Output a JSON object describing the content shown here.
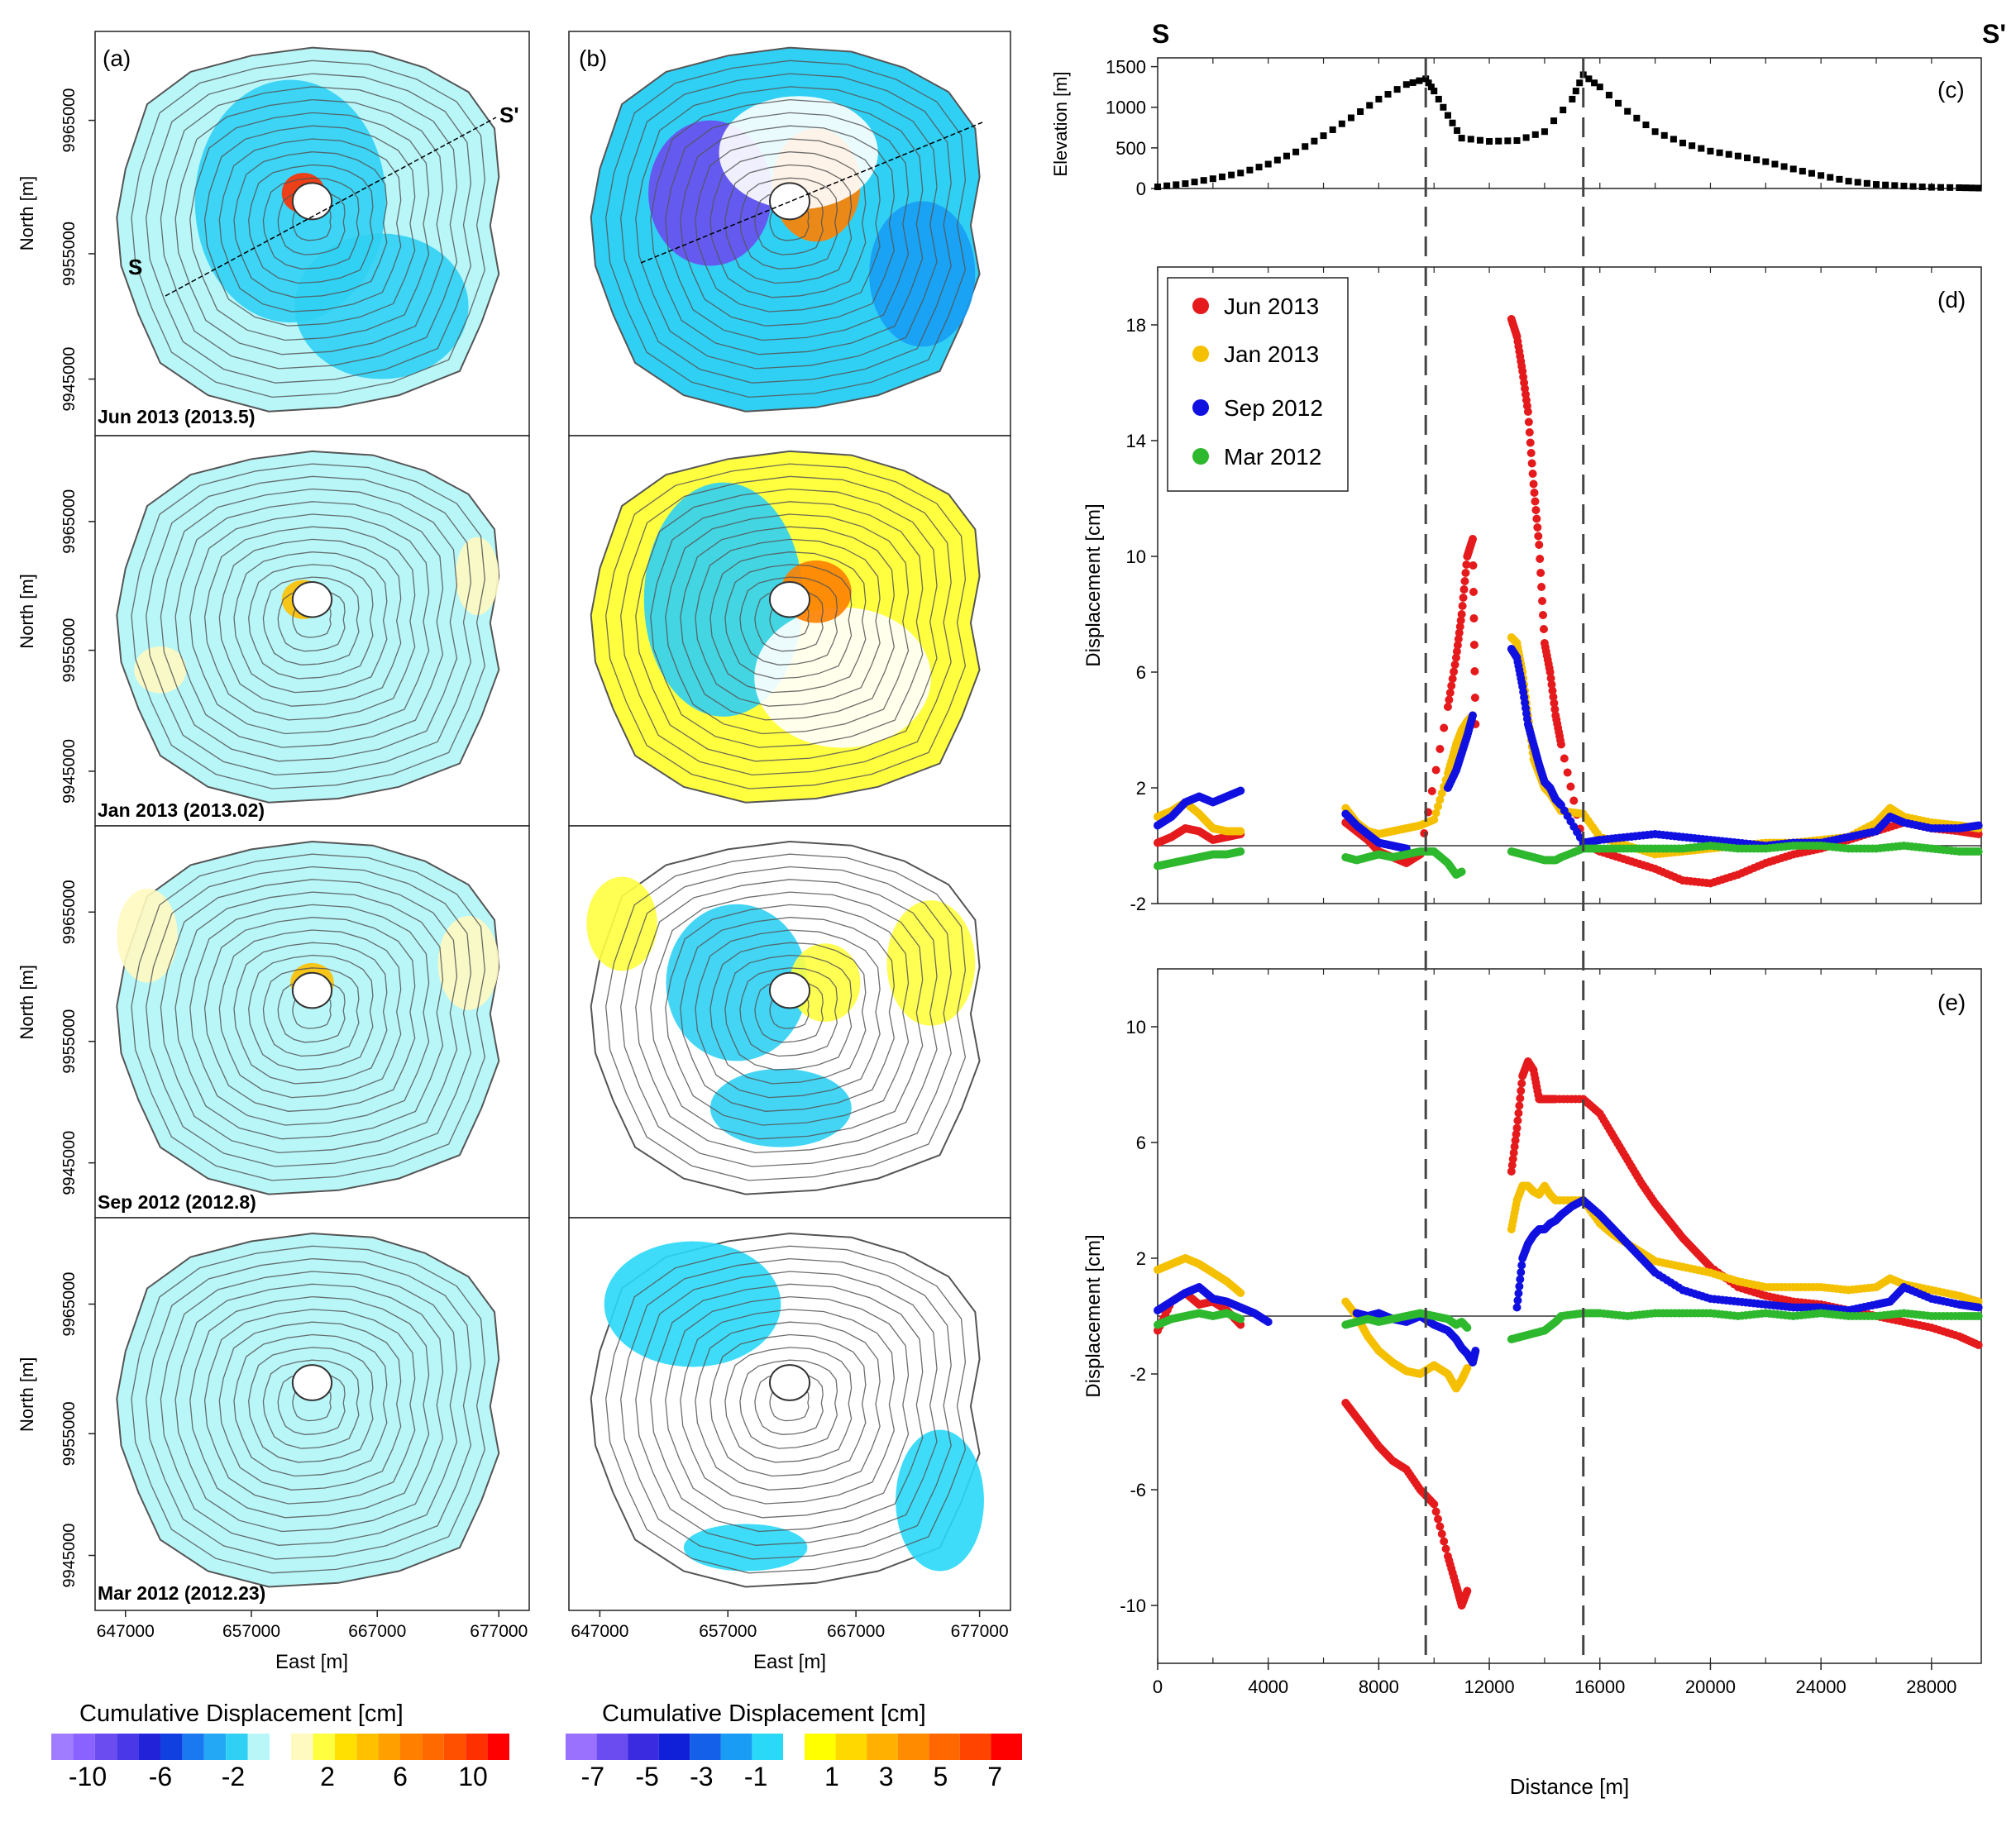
{
  "maps": {
    "panel_labels": [
      "(a)",
      "(b)"
    ],
    "row_dates": [
      "Jun 2013 (2013.5)",
      "Jan 2013 (2013.02)",
      "Sep 2012 (2012.8)",
      "Mar 2012 (2012.23)"
    ],
    "profile_start": "S",
    "profile_end": "S'",
    "north_label": "North [m]",
    "east_label": "East [m]",
    "north_ticks": [
      "9965000",
      "9955000",
      "9945000"
    ],
    "east_ticks": [
      "647000",
      "657000",
      "667000",
      "677000"
    ]
  },
  "colorbars": [
    {
      "title": "Cumulative Displacement [cm]",
      "tick_labels": [
        "-10",
        "-6",
        "-2",
        "2",
        "6",
        "10"
      ],
      "negative_colors": [
        "#a07cff",
        "#8a62ff",
        "#6a4cf0",
        "#4a38e8",
        "#2222d8",
        "#1040e0",
        "#1a78f0",
        "#22a8f4",
        "#30d0f4",
        "#b8f6f8"
      ],
      "positive_colors": [
        "#fffac0",
        "#ffff40",
        "#ffe000",
        "#ffc000",
        "#ffa000",
        "#ff8000",
        "#ff6a00",
        "#ff5000",
        "#ff3000",
        "#ff0000"
      ]
    },
    {
      "title": "Cumulative Displacement [cm]",
      "tick_labels": [
        "-7",
        "-5",
        "-3",
        "-1",
        "1",
        "3",
        "5",
        "7"
      ],
      "negative_colors": [
        "#9a70ff",
        "#6a4cf0",
        "#3a2ae0",
        "#1020d8",
        "#1460e8",
        "#189cf4",
        "#2ad8f8"
      ],
      "positive_colors": [
        "#ffff00",
        "#ffd800",
        "#ffb000",
        "#ff8c00",
        "#ff6800",
        "#ff4400",
        "#ff0000"
      ]
    }
  ],
  "legend": {
    "entries": [
      "Jun 2013",
      "Jan 2013",
      "Sep 2012",
      "Mar 2012"
    ],
    "colors": [
      "#e41a1c",
      "#f5c000",
      "#1010e0",
      "#2eb82e"
    ]
  },
  "chart_data": [
    {
      "panel": "(c)",
      "type": "scatter",
      "ylabel": "Elevation [m]",
      "yticks": [
        0,
        500,
        1000,
        1500
      ],
      "ylim": [
        0,
        1600
      ],
      "xlim": [
        0,
        29800
      ],
      "series": [
        {
          "color": "#000000",
          "x": [
            0,
            1000,
            2000,
            3000,
            4000,
            5000,
            6000,
            7000,
            8000,
            9000,
            9700,
            10000,
            10500,
            11000,
            12000,
            13000,
            14000,
            15000,
            15400,
            16000,
            17000,
            18000,
            19000,
            20000,
            21000,
            22000,
            23000,
            24000,
            25000,
            26000,
            27000,
            28000,
            29000,
            29700
          ],
          "y": [
            20,
            60,
            120,
            190,
            300,
            450,
            650,
            870,
            1100,
            1280,
            1350,
            1200,
            900,
            620,
            580,
            590,
            700,
            1100,
            1400,
            1250,
            950,
            700,
            560,
            460,
            400,
            330,
            240,
            160,
            90,
            50,
            30,
            15,
            10,
            5
          ]
        }
      ]
    },
    {
      "panel": "(d)",
      "type": "scatter",
      "ylabel": "Displacement [cm]",
      "yticks": [
        -2,
        2,
        6,
        10,
        14,
        18
      ],
      "ylim": [
        -2,
        20
      ],
      "xlim": [
        0,
        29800
      ],
      "series": [
        {
          "name": "Jun 2013",
          "color": "#e41a1c",
          "x": [
            0,
            500,
            1000,
            1500,
            2000,
            2500,
            3000,
            6800,
            7200,
            7600,
            8000,
            8500,
            9000,
            9500,
            10500,
            10800,
            11000,
            11200,
            11400,
            11500,
            12800,
            13000,
            13200,
            13400,
            13600,
            13800,
            14000,
            14200,
            14400,
            14600,
            15400,
            16000,
            17000,
            18000,
            19000,
            20000,
            21000,
            22000,
            23000,
            24000,
            25000,
            26000,
            27000,
            28000,
            29000,
            29700
          ],
          "y": [
            0.1,
            0.3,
            0.6,
            0.5,
            0.2,
            0.3,
            0.4,
            0.8,
            0.5,
            0.2,
            -0.2,
            -0.4,
            -0.6,
            -0.3,
            4.8,
            6.5,
            8.0,
            10.0,
            10.6,
            4.2,
            18.2,
            17.6,
            16.4,
            15.0,
            12.5,
            10.4,
            7.0,
            6.0,
            4.5,
            3.5,
            0.1,
            -0.2,
            -0.5,
            -0.8,
            -1.2,
            -1.3,
            -1.0,
            -0.6,
            -0.3,
            -0.1,
            0.2,
            0.5,
            0.8,
            0.6,
            0.5,
            0.4
          ]
        },
        {
          "name": "Jan 2013",
          "color": "#f5c000",
          "x": [
            0,
            500,
            1000,
            1500,
            2000,
            2500,
            3000,
            6800,
            7200,
            7600,
            8000,
            8500,
            9000,
            9500,
            10000,
            10500,
            10800,
            11000,
            11200,
            11400,
            12800,
            13000,
            13200,
            13400,
            13600,
            13800,
            14000,
            14200,
            14400,
            14600,
            15400,
            16000,
            17000,
            18000,
            19000,
            20000,
            21000,
            22000,
            23000,
            24000,
            25000,
            26000,
            26500,
            27000,
            28000,
            29000,
            29700
          ],
          "y": [
            1.0,
            1.2,
            1.5,
            1.1,
            0.6,
            0.5,
            0.5,
            1.3,
            0.8,
            0.5,
            0.4,
            0.5,
            0.6,
            0.7,
            0.9,
            2.5,
            3.5,
            4.0,
            4.3,
            4.5,
            7.2,
            7.0,
            6.0,
            4.5,
            3.0,
            2.5,
            2.0,
            1.8,
            1.5,
            1.2,
            1.1,
            0.3,
            0.0,
            -0.3,
            -0.2,
            -0.1,
            0.0,
            0.1,
            0.1,
            0.2,
            0.3,
            0.8,
            1.3,
            1.0,
            0.8,
            0.7,
            0.6
          ]
        },
        {
          "name": "Sep 2012",
          "color": "#1010e0",
          "x": [
            0,
            500,
            1000,
            1500,
            2000,
            2500,
            3000,
            6800,
            7200,
            7600,
            8000,
            8500,
            9000,
            10500,
            10800,
            11000,
            11200,
            11400,
            12800,
            13000,
            13200,
            13400,
            13600,
            13800,
            14000,
            14200,
            14400,
            14600,
            15400,
            16000,
            17000,
            18000,
            19000,
            20000,
            21000,
            22000,
            23000,
            24000,
            25000,
            26000,
            26500,
            27000,
            28000,
            29000,
            29700
          ],
          "y": [
            0.7,
            1.0,
            1.5,
            1.7,
            1.5,
            1.7,
            1.9,
            1.1,
            0.7,
            0.4,
            0.1,
            0.0,
            -0.1,
            2.0,
            2.6,
            3.2,
            3.8,
            4.5,
            6.8,
            6.5,
            5.5,
            4.2,
            3.5,
            2.8,
            2.2,
            2.0,
            1.6,
            1.4,
            0.1,
            0.2,
            0.3,
            0.4,
            0.3,
            0.2,
            0.1,
            0.0,
            0.1,
            0.1,
            0.3,
            0.5,
            1.0,
            0.8,
            0.6,
            0.6,
            0.7
          ]
        },
        {
          "name": "Mar 2012",
          "color": "#2eb82e",
          "x": [
            0,
            500,
            1000,
            1500,
            2000,
            2500,
            3000,
            6800,
            7200,
            7600,
            8000,
            8500,
            9000,
            9500,
            10000,
            10500,
            10800,
            11000,
            12800,
            13200,
            13600,
            14000,
            14400,
            14600,
            15400,
            16000,
            17000,
            18000,
            19000,
            20000,
            21000,
            22000,
            23000,
            24000,
            25000,
            26000,
            27000,
            28000,
            29000,
            29700
          ],
          "y": [
            -0.7,
            -0.6,
            -0.5,
            -0.4,
            -0.3,
            -0.3,
            -0.2,
            -0.4,
            -0.5,
            -0.4,
            -0.3,
            -0.4,
            -0.3,
            -0.2,
            -0.2,
            -0.6,
            -1.0,
            -0.9,
            -0.2,
            -0.3,
            -0.4,
            -0.5,
            -0.5,
            -0.4,
            -0.1,
            -0.1,
            -0.1,
            -0.1,
            -0.1,
            0.0,
            -0.1,
            -0.1,
            0.0,
            0.0,
            -0.1,
            -0.1,
            0.0,
            -0.1,
            -0.2,
            -0.2
          ]
        }
      ]
    },
    {
      "panel": "(e)",
      "type": "scatter",
      "xlabel": "Distance [m]",
      "ylabel": "Displacement [cm]",
      "yticks": [
        -10,
        -6,
        -2,
        2,
        6,
        10
      ],
      "xticks": [
        0,
        4000,
        8000,
        12000,
        16000,
        20000,
        24000,
        28000
      ],
      "ylim": [
        -12,
        12
      ],
      "xlim": [
        0,
        29800
      ],
      "series": [
        {
          "name": "Jun 2013",
          "color": "#e41a1c",
          "x": [
            0,
            500,
            1000,
            1500,
            2000,
            2500,
            3000,
            6800,
            7200,
            7600,
            8000,
            8500,
            9000,
            9500,
            10000,
            10500,
            10800,
            11000,
            11200,
            12800,
            13000,
            13200,
            13400,
            13600,
            13800,
            14000,
            14200,
            14400,
            15400,
            16000,
            16500,
            17000,
            17500,
            18000,
            18500,
            19000,
            19500,
            20000,
            21000,
            22000,
            23000,
            24000,
            25000,
            26000,
            27000,
            28000,
            29000,
            29700
          ],
          "y": [
            -0.5,
            0.5,
            0.8,
            0.4,
            0.5,
            0.2,
            -0.3,
            -3.0,
            -3.5,
            -4.0,
            -4.5,
            -5.0,
            -5.3,
            -6.0,
            -6.5,
            -8.3,
            -9.3,
            -10.0,
            -9.5,
            5.0,
            6.5,
            8.3,
            8.8,
            8.5,
            7.5,
            7.5,
            7.5,
            7.5,
            7.5,
            7.0,
            6.2,
            5.4,
            4.6,
            3.9,
            3.3,
            2.7,
            2.2,
            1.7,
            1.0,
            0.7,
            0.5,
            0.4,
            0.2,
            0.0,
            -0.2,
            -0.4,
            -0.7,
            -1.0
          ]
        },
        {
          "name": "Jan 2013",
          "color": "#f5c000",
          "x": [
            0,
            500,
            1000,
            1500,
            2000,
            2500,
            3000,
            6800,
            7200,
            7600,
            8000,
            8500,
            9000,
            9500,
            10000,
            10500,
            10800,
            11000,
            11200,
            12800,
            13000,
            13200,
            13400,
            13600,
            13800,
            14000,
            14200,
            14400,
            15400,
            16000,
            16500,
            17000,
            17500,
            18000,
            19000,
            20000,
            21000,
            22000,
            23000,
            24000,
            25000,
            26000,
            26500,
            27000,
            28000,
            29000,
            29700
          ],
          "y": [
            1.6,
            1.8,
            2.0,
            1.8,
            1.5,
            1.2,
            0.8,
            0.5,
            0.0,
            -0.7,
            -1.2,
            -1.6,
            -1.9,
            -2.0,
            -1.7,
            -2.0,
            -2.5,
            -2.2,
            -1.8,
            3.0,
            4.0,
            4.5,
            4.5,
            4.3,
            4.2,
            4.5,
            4.2,
            4.0,
            4.0,
            3.2,
            2.8,
            2.5,
            2.2,
            1.9,
            1.7,
            1.5,
            1.2,
            1.0,
            1.0,
            1.0,
            0.9,
            1.0,
            1.3,
            1.1,
            0.9,
            0.7,
            0.5
          ]
        },
        {
          "name": "Sep 2012",
          "color": "#1010e0",
          "x": [
            0,
            500,
            1000,
            1500,
            2000,
            2500,
            3000,
            3500,
            4000,
            7200,
            7600,
            8000,
            8500,
            9000,
            9500,
            10000,
            10500,
            10800,
            11000,
            11200,
            11400,
            11500,
            13000,
            13200,
            13400,
            13600,
            13800,
            14000,
            14200,
            14400,
            14600,
            15000,
            15400,
            16000,
            16500,
            17000,
            17500,
            18000,
            19000,
            20000,
            21000,
            22000,
            23000,
            24000,
            25000,
            26000,
            26500,
            27000,
            28000,
            29000,
            29700
          ],
          "y": [
            0.2,
            0.5,
            0.8,
            1.0,
            0.6,
            0.5,
            0.3,
            0.1,
            -0.2,
            0.1,
            0.0,
            0.1,
            -0.1,
            -0.2,
            0.0,
            -0.3,
            -0.5,
            -0.8,
            -1.1,
            -1.3,
            -1.6,
            -1.2,
            0.3,
            2.0,
            2.5,
            2.8,
            3.0,
            3.0,
            3.2,
            3.3,
            3.5,
            3.8,
            4.0,
            3.5,
            3.0,
            2.5,
            2.0,
            1.5,
            0.9,
            0.6,
            0.5,
            0.4,
            0.3,
            0.3,
            0.2,
            0.4,
            0.5,
            1.0,
            0.6,
            0.4,
            0.3
          ]
        },
        {
          "name": "Mar 2012",
          "color": "#2eb82e",
          "x": [
            0,
            500,
            1000,
            1500,
            2000,
            2500,
            3000,
            6800,
            7200,
            7600,
            8000,
            8500,
            9000,
            9500,
            10000,
            10500,
            10800,
            11000,
            11200,
            12800,
            13200,
            13600,
            14000,
            14400,
            14600,
            15400,
            16000,
            17000,
            18000,
            19000,
            20000,
            21000,
            22000,
            23000,
            24000,
            25000,
            26000,
            27000,
            28000,
            29000,
            29700
          ],
          "y": [
            -0.3,
            -0.1,
            0.0,
            0.1,
            0.0,
            0.1,
            -0.1,
            -0.3,
            -0.2,
            -0.1,
            -0.2,
            -0.1,
            0.0,
            0.1,
            0.0,
            -0.1,
            -0.3,
            -0.2,
            -0.4,
            -0.8,
            -0.7,
            -0.6,
            -0.5,
            -0.2,
            0.0,
            0.1,
            0.1,
            0.0,
            0.1,
            0.1,
            0.1,
            0.0,
            0.1,
            0.0,
            0.1,
            0.0,
            0.0,
            0.1,
            0.0,
            0.0,
            0.0
          ]
        }
      ]
    }
  ]
}
